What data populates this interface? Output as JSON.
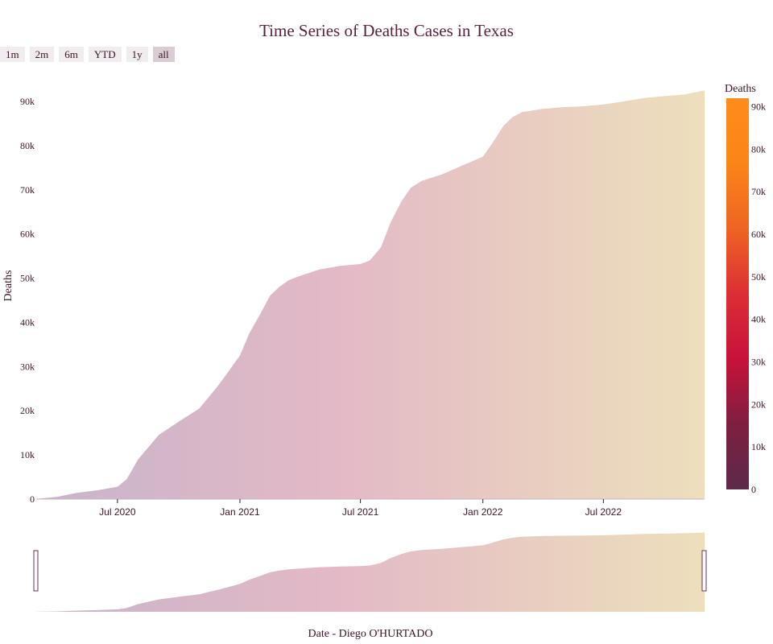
{
  "range_selector": {
    "buttons": [
      {
        "label": "1m",
        "active": false
      },
      {
        "label": "2m",
        "active": false
      },
      {
        "label": "6m",
        "active": false
      },
      {
        "label": "YTD",
        "active": false
      },
      {
        "label": "1y",
        "active": false
      },
      {
        "label": "all",
        "active": true
      }
    ]
  },
  "colors": {
    "title": "#5a1f3c",
    "text": "#3a1428",
    "handle": "#6b3050",
    "fill_start": "#c8b4ca",
    "fill_mid": "#e3b9c6",
    "fill_end": "#eddfbc",
    "colorscale": [
      "#5c2a4a",
      "#7e1f40",
      "#c8123a",
      "#dc2e35",
      "#ee6424",
      "#fb8518",
      "#ff8c1a"
    ]
  },
  "chart_data": {
    "type": "area",
    "title": "Time Series of Deaths Cases in Texas",
    "xlabel": "Date - Diego O'HURTADO",
    "ylabel": "Deaths",
    "x_range": [
      "2020-03-01",
      "2022-11-30"
    ],
    "ylim": [
      0,
      92000
    ],
    "y_ticks": [
      0,
      10000,
      20000,
      30000,
      40000,
      50000,
      60000,
      70000,
      80000,
      90000
    ],
    "y_tick_labels": [
      "0",
      "10k",
      "20k",
      "30k",
      "40k",
      "50k",
      "60k",
      "70k",
      "80k",
      "90k"
    ],
    "x_ticks": [
      "2020-07-01",
      "2021-01-01",
      "2021-07-01",
      "2022-01-01",
      "2022-07-01"
    ],
    "x_tick_labels": [
      "Jul 2020",
      "Jan 2021",
      "Jul 2021",
      "Jan 2022",
      "Jul 2022"
    ],
    "grid": false,
    "rangeslider": true,
    "colorbar": {
      "title": "Deaths",
      "range": [
        0,
        92000
      ],
      "ticks": [
        0,
        10000,
        20000,
        30000,
        40000,
        50000,
        60000,
        70000,
        80000,
        90000
      ],
      "tick_labels": [
        "0",
        "10k",
        "20k",
        "30k",
        "40k",
        "50k",
        "60k",
        "70k",
        "80k",
        "90k"
      ]
    },
    "series": [
      {
        "x": [
          "2020-03-01",
          "2020-04-01",
          "2020-05-01",
          "2020-06-01",
          "2020-07-01",
          "2020-07-15",
          "2020-08-01",
          "2020-09-01",
          "2020-10-01",
          "2020-11-01",
          "2020-12-01",
          "2021-01-01",
          "2021-01-15",
          "2021-02-01",
          "2021-02-15",
          "2021-03-01",
          "2021-03-15",
          "2021-04-01",
          "2021-05-01",
          "2021-06-01",
          "2021-07-01",
          "2021-07-15",
          "2021-08-01",
          "2021-08-15",
          "2021-09-01",
          "2021-09-15",
          "2021-10-01",
          "2021-11-01",
          "2021-12-01",
          "2022-01-01",
          "2022-01-15",
          "2022-02-01",
          "2022-02-15",
          "2022-03-01",
          "2022-04-01",
          "2022-05-01",
          "2022-06-01",
          "2022-07-01",
          "2022-08-01",
          "2022-09-01",
          "2022-10-01",
          "2022-11-01",
          "2022-11-30"
        ],
        "y": [
          50,
          500,
          1400,
          2000,
          2800,
          4500,
          9000,
          14500,
          17500,
          20500,
          26000,
          32500,
          37500,
          42000,
          46000,
          48000,
          49500,
          50500,
          52000,
          52800,
          53200,
          54000,
          57000,
          62500,
          67500,
          70500,
          72000,
          73500,
          75500,
          77500,
          80500,
          84500,
          86500,
          87600,
          88300,
          88700,
          88900,
          89300,
          90000,
          90800,
          91200,
          91600,
          92500
        ]
      }
    ]
  }
}
